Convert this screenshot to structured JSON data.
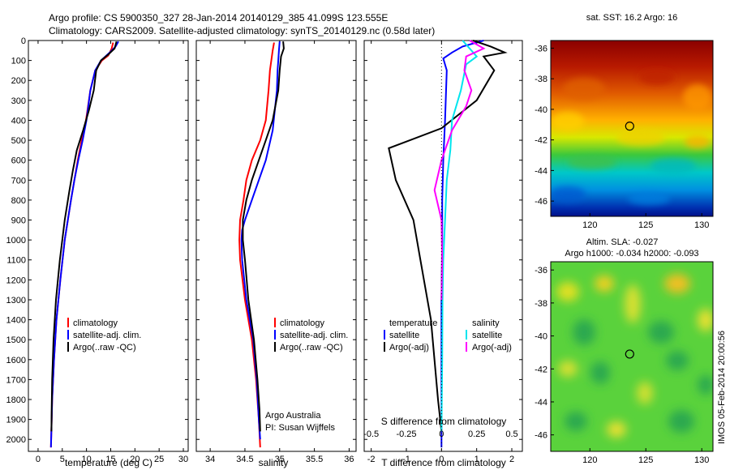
{
  "header": {
    "line1": "Argo profile: CS 5900350_327 28-Jan-2014 20140129_385 41.099S 123.555E",
    "line2": "Climatology: CARS2009. Satellite-adjusted climatology: synTS_20140129.nc (0.58d later)"
  },
  "side_stamp": "IMOS 05-Feb-2014 20:00:56",
  "colors": {
    "climatology": "#ff0000",
    "satellite": "#0000ff",
    "argo": "#000000",
    "s_satellite": "#00e5ee",
    "s_argo": "#ff00ff"
  },
  "chart_data": [
    {
      "type": "line",
      "id": "temperature",
      "xlabel": "temperature (deg C)",
      "ylabel": "",
      "xlim": [
        -2,
        31
      ],
      "ylim": [
        2060,
        0
      ],
      "xticks": [
        0,
        5,
        10,
        15,
        20,
        25,
        30
      ],
      "yticks": [
        0,
        100,
        200,
        300,
        400,
        500,
        600,
        700,
        800,
        900,
        1000,
        1100,
        1200,
        1300,
        1400,
        1500,
        1600,
        1700,
        1800,
        1900,
        2000
      ],
      "legend": [
        "climatology",
        "satellite-adj. clim.",
        "Argo(..raw -QC)"
      ],
      "series": [
        {
          "name": "climatology",
          "color": "#ff0000",
          "x": [
            15.5,
            15.2,
            14.5,
            13.2,
            11.8,
            10.8,
            9.9,
            9.0,
            8.2,
            7.5,
            6.8,
            5.5,
            4.6,
            3.8,
            3.3,
            2.9,
            2.75,
            2.65
          ],
          "y": [
            10,
            40,
            75,
            100,
            150,
            250,
            400,
            500,
            600,
            700,
            800,
            1000,
            1200,
            1400,
            1600,
            1800,
            1950,
            2040
          ]
        },
        {
          "name": "satellite-adj. clim.",
          "color": "#0000ff",
          "x": [
            16.6,
            16.0,
            14.8,
            13.0,
            11.8,
            10.8,
            10.0,
            9.2,
            8.3,
            7.5,
            6.8,
            5.5,
            4.6,
            3.8,
            3.3,
            2.9,
            2.75,
            2.65
          ],
          "y": [
            5,
            30,
            60,
            100,
            150,
            250,
            400,
            500,
            600,
            700,
            800,
            1000,
            1200,
            1400,
            1600,
            1800,
            1950,
            2040
          ]
        },
        {
          "name": "Argo(..raw -QC)",
          "color": "#000000",
          "x": [
            16.2,
            15.8,
            14.5,
            13.0,
            12.0,
            11.5,
            10.5,
            9.3,
            8.0,
            7.2,
            6.5,
            5.5,
            4.5,
            3.7,
            3.2,
            2.9,
            2.8,
            2.75
          ],
          "y": [
            5,
            40,
            70,
            100,
            150,
            250,
            350,
            450,
            550,
            650,
            750,
            900,
            1100,
            1300,
            1500,
            1700,
            1850,
            1960
          ]
        }
      ]
    },
    {
      "type": "line",
      "id": "salinity",
      "xlabel": "salinity",
      "ylabel": "",
      "xlim": [
        33.8,
        36.1
      ],
      "xticks": [
        34,
        34.5,
        35,
        35.5,
        36
      ],
      "ylim": [
        2060,
        0
      ],
      "legend": [
        "climatology",
        "satellite-adj. clim.",
        "Argo(..raw -QC)"
      ],
      "annotation": [
        "Argo Australia",
        "PI: Susan Wijffels"
      ],
      "series": [
        {
          "name": "climatology",
          "color": "#ff0000",
          "x": [
            34.92,
            34.9,
            34.88,
            34.86,
            34.84,
            34.8,
            34.72,
            34.6,
            34.52,
            34.48,
            34.43,
            34.42,
            34.43,
            34.5,
            34.6,
            34.66,
            34.7,
            34.72
          ],
          "y": [
            10,
            50,
            100,
            150,
            250,
            400,
            500,
            600,
            700,
            800,
            900,
            1000,
            1100,
            1300,
            1500,
            1700,
            1900,
            2040
          ]
        },
        {
          "name": "satellite-adj. clim.",
          "color": "#0000ff",
          "x": [
            35.0,
            34.99,
            34.98,
            34.97,
            34.96,
            34.9,
            34.8,
            34.7,
            34.6,
            34.5,
            34.46,
            34.45,
            34.46,
            34.52,
            34.62,
            34.67,
            34.7,
            34.72
          ],
          "y": [
            5,
            50,
            100,
            150,
            250,
            450,
            600,
            700,
            800,
            900,
            950,
            1000,
            1100,
            1300,
            1500,
            1700,
            1900,
            2000
          ]
        },
        {
          "name": "Argo(..raw -QC)",
          "color": "#000000",
          "x": [
            35.05,
            35.06,
            35.02,
            35.0,
            34.98,
            34.9,
            34.8,
            34.7,
            34.6,
            34.52,
            34.47,
            34.47,
            34.5,
            34.55,
            34.63,
            34.68,
            34.71,
            34.72
          ],
          "y": [
            5,
            40,
            80,
            150,
            250,
            400,
            500,
            600,
            700,
            800,
            900,
            1000,
            1100,
            1300,
            1500,
            1700,
            1850,
            1960
          ]
        }
      ]
    },
    {
      "type": "line",
      "id": "difference",
      "xlabel": "T difference from climatology",
      "xlabel_top": "S difference from climatology",
      "xlim": [
        -2.2,
        2.3
      ],
      "xticks": [
        -2,
        -1,
        0,
        1,
        2
      ],
      "s_xticks": [
        "-0.5",
        "-0.25",
        "0",
        "0.25",
        "0.5"
      ],
      "ylim": [
        2060,
        0
      ],
      "legend_temperature": [
        "temperature",
        "satellite",
        "Argo(-adj)"
      ],
      "legend_salinity": [
        "salinity",
        "satellite",
        "Argo(-adj)"
      ],
      "series": [
        {
          "name": "satellite",
          "color": "#0000ff",
          "x": [
            1.2,
            0.6,
            0.3,
            0.05,
            0.15,
            0.1,
            0.05,
            0.02,
            0.02,
            0.0,
            0.0,
            0.0,
            0.0
          ],
          "y": [
            0,
            30,
            60,
            90,
            150,
            400,
            600,
            800,
            1000,
            1300,
            1600,
            1900,
            2040
          ]
        },
        {
          "name": "Argo(-adj)",
          "color": "#000000",
          "x": [
            0.9,
            1.4,
            1.8,
            1.2,
            1.5,
            1.0,
            0.0,
            -1.5,
            -1.3,
            -0.8,
            -0.6,
            -0.3,
            -0.1,
            0.0
          ],
          "y": [
            0,
            30,
            60,
            80,
            150,
            300,
            440,
            540,
            700,
            900,
            1100,
            1400,
            1800,
            1960
          ]
        },
        {
          "name": "satellite",
          "color": "#00e5ee",
          "x": [
            0.6,
            0.8,
            1.0,
            0.7,
            0.55,
            0.3,
            0.25,
            0.15,
            0.1,
            0.05,
            0.03,
            0.02,
            0.0
          ],
          "y": [
            0,
            40,
            80,
            120,
            250,
            400,
            550,
            700,
            900,
            1100,
            1300,
            1600,
            1960
          ]
        },
        {
          "name": "Argo(-adj)",
          "color": "#ff00ff",
          "x": [
            0.8,
            1.2,
            0.7,
            0.65,
            0.85,
            0.7,
            0.3,
            0.0,
            -0.2,
            0.0,
            0.02,
            0.0
          ],
          "y": [
            0,
            40,
            80,
            150,
            250,
            330,
            450,
            600,
            750,
            900,
            1100,
            1300
          ]
        }
      ]
    },
    {
      "type": "heatmap",
      "id": "sst_map",
      "title": "sat. SST: 16.2  Argo: 16",
      "xticks": [
        120,
        125,
        130
      ],
      "yticks": [
        -36,
        -38,
        -40,
        -42,
        -44,
        -46
      ],
      "xlim": [
        116.5,
        131
      ],
      "ylim": [
        -47,
        -35.5
      ],
      "marker": {
        "lon": 123.555,
        "lat": -41.099
      }
    },
    {
      "type": "heatmap",
      "id": "sla_map",
      "title": "Altim. SLA: -0.027",
      "subtitle": "Argo h1000: -0.034  h2000: -0.093",
      "xticks": [
        120,
        125,
        130
      ],
      "yticks": [
        -36,
        -38,
        -40,
        -42,
        -44,
        -46
      ],
      "xlim": [
        116.5,
        131
      ],
      "ylim": [
        -47,
        -35.5
      ],
      "marker": {
        "lon": 123.555,
        "lat": -41.099
      }
    }
  ]
}
